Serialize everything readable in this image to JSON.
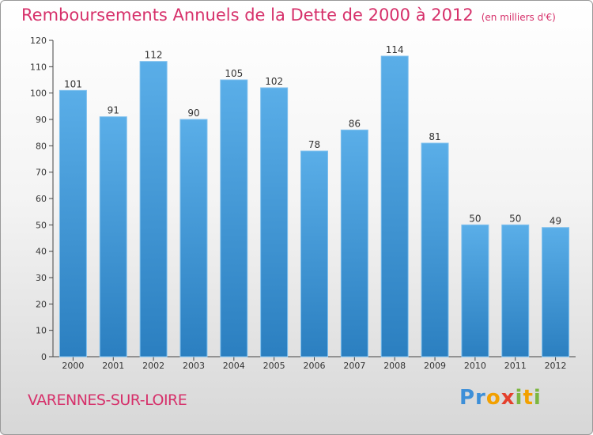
{
  "header": {
    "title": "Remboursements Annuels de la Dette de 2000 à 2012",
    "unit": "(en milliers d'€)"
  },
  "footer": {
    "commune": "VARENNES-SUR-LOIRE",
    "brand": "Proxiti"
  },
  "colors": {
    "bar_top": "#5aaee8",
    "bar_bottom": "#2b7fc0",
    "title": "#d6306a"
  },
  "chart_data": {
    "type": "bar",
    "title": "Remboursements Annuels de la Dette de 2000 à 2012",
    "ylabel": "",
    "xlabel": "",
    "categories": [
      "2000",
      "2001",
      "2002",
      "2003",
      "2004",
      "2005",
      "2006",
      "2007",
      "2008",
      "2009",
      "2010",
      "2011",
      "2012"
    ],
    "values": [
      101,
      91,
      112,
      90,
      105,
      102,
      78,
      86,
      114,
      81,
      50,
      50,
      49
    ],
    "ylim": [
      0,
      120
    ],
    "yticks": [
      0,
      10,
      20,
      30,
      40,
      50,
      60,
      70,
      80,
      90,
      100,
      110,
      120
    ],
    "grid": false,
    "data_labels": true
  }
}
